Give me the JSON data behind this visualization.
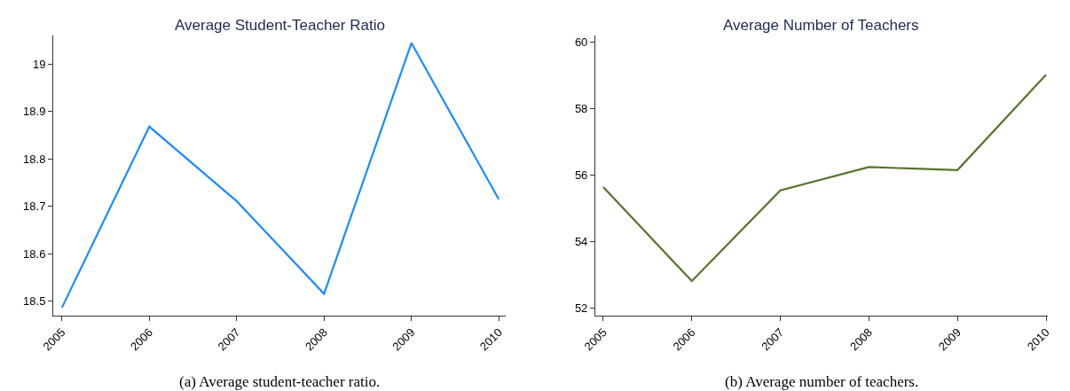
{
  "chart_data": [
    {
      "type": "line",
      "title": "Average Student-Teacher Ratio",
      "x": [
        2005,
        2006,
        2007,
        2008,
        2009,
        2010
      ],
      "series": [
        {
          "color": "#1a8cff",
          "values": [
            18.487,
            18.868,
            18.711,
            18.516,
            19.044,
            18.715
          ]
        }
      ],
      "xlim": [
        2004.9,
        2010.08
      ],
      "xticks": [
        2005,
        2006,
        2007,
        2008,
        2009,
        2010
      ],
      "ylim": [
        18.47,
        19.06
      ],
      "yticks": [
        18.5,
        18.6,
        18.7,
        18.8,
        18.9,
        19
      ],
      "marker": "none",
      "line_style": "solid",
      "annotations": [
        "(a) Average student-teacher ratio."
      ]
    },
    {
      "type": "line",
      "title": "Average Number of Teachers",
      "x": [
        2005,
        2006,
        2007,
        2008,
        2009,
        2010
      ],
      "series": [
        {
          "color": "#55742d",
          "values": [
            55.64,
            52.81,
            55.54,
            56.24,
            56.15,
            59.02
          ]
        }
      ],
      "xlim": [
        2004.91,
        2010.02
      ],
      "xticks": [
        2005,
        2006,
        2007,
        2008,
        2009,
        2010
      ],
      "ylim": [
        51.77,
        60.2
      ],
      "yticks": [
        52,
        54,
        56,
        58,
        60
      ],
      "marker": "none",
      "line_style": "solid",
      "annotations": [
        "(b) Average number of teachers."
      ]
    }
  ]
}
